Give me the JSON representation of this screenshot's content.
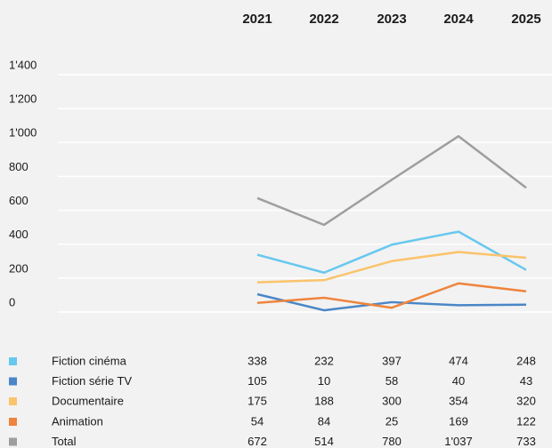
{
  "chart_data": {
    "type": "line",
    "categories": [
      "2021",
      "2022",
      "2023",
      "2024",
      "2025"
    ],
    "series": [
      {
        "name": "Fiction cinéma",
        "color": "#67c8ef",
        "values": [
          338,
          232,
          397,
          474,
          248
        ]
      },
      {
        "name": "Fiction série TV",
        "color": "#4a86c6",
        "values": [
          105,
          10,
          58,
          40,
          43
        ]
      },
      {
        "name": "Documentaire",
        "color": "#fbc36b",
        "values": [
          175,
          188,
          300,
          354,
          320
        ]
      },
      {
        "name": "Animation",
        "color": "#ee843d",
        "values": [
          54,
          84,
          25,
          169,
          122
        ]
      },
      {
        "name": "Total",
        "color": "#9e9e9e",
        "values": [
          672,
          514,
          780,
          1037,
          733
        ],
        "value_labels": [
          "672",
          "514",
          "780",
          "1'037",
          "733"
        ]
      }
    ],
    "ylim": [
      0,
      1400
    ],
    "yticks": [
      0,
      200,
      400,
      600,
      800,
      {
        "value": 1000,
        "label": "1'000"
      },
      {
        "value": 1200,
        "label": "1'200"
      },
      {
        "value": 1400,
        "label": "1'400"
      }
    ],
    "grid": true
  }
}
